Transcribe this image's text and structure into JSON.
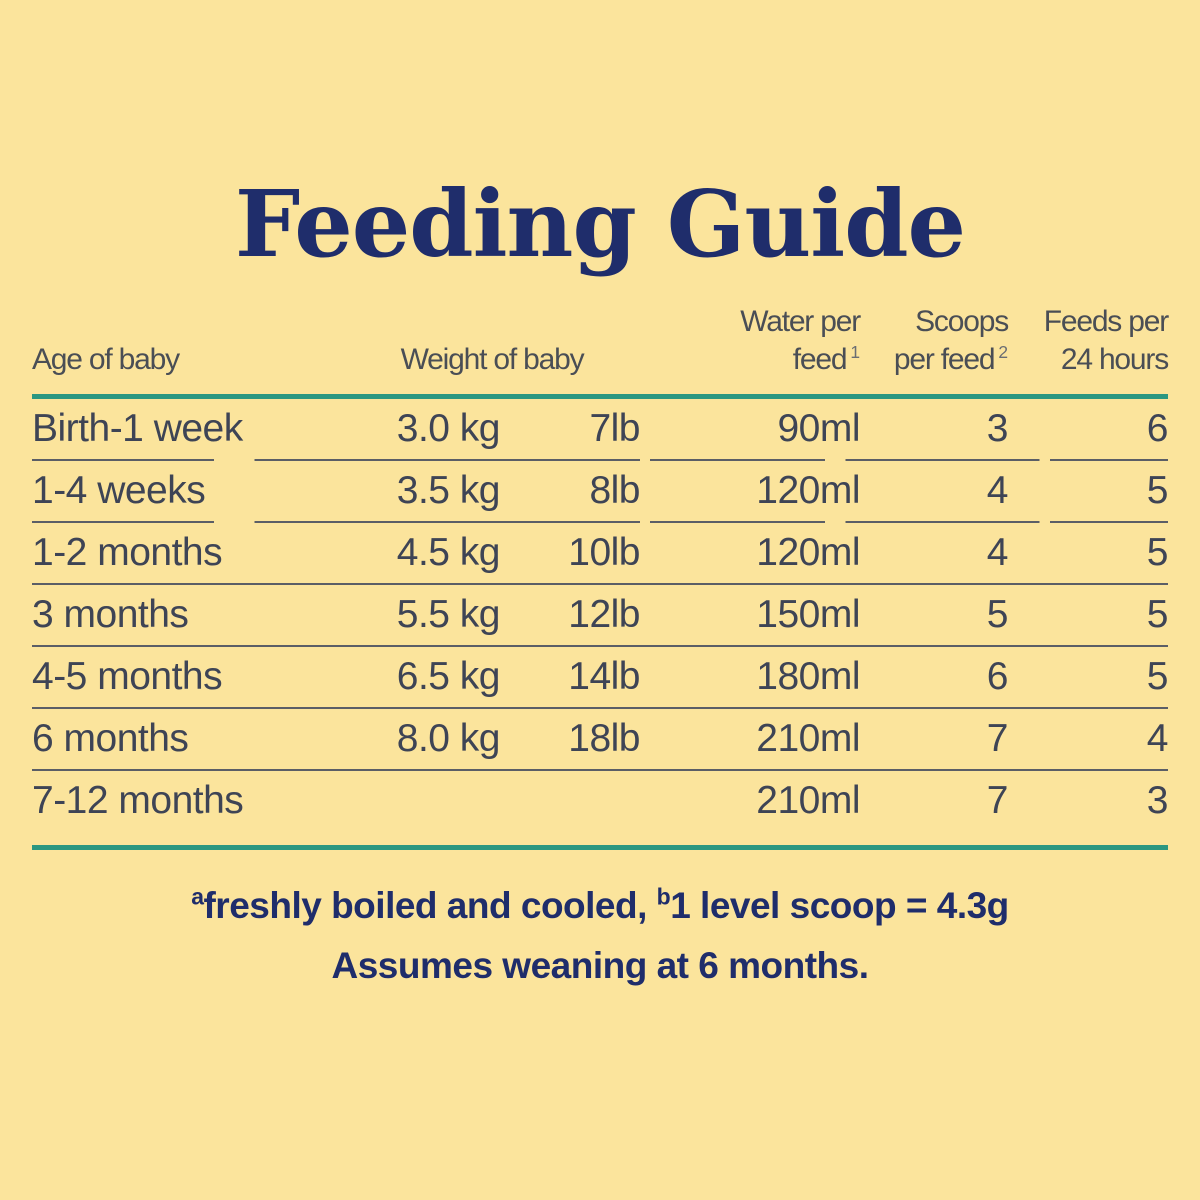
{
  "title": "Feeding Guide",
  "table": {
    "headers": {
      "age": "Age of baby",
      "weight": "Weight of baby",
      "water_line1": "Water per",
      "water_line2": "feed",
      "water_sup": "1",
      "scoops_line1": "Scoops",
      "scoops_line2": "per feed",
      "scoops_sup": "2",
      "feeds_line1": "Feeds per",
      "feeds_line2": "24 hours"
    },
    "rows": [
      {
        "age": "Birth-1 week",
        "kg": "3.0 kg",
        "lb": "7lb",
        "water": "90ml",
        "scoops": "3",
        "feeds": "6"
      },
      {
        "age": "1-4 weeks",
        "kg": "3.5 kg",
        "lb": "8lb",
        "water": "120ml",
        "scoops": "4",
        "feeds": "5"
      },
      {
        "age": "1-2 months",
        "kg": "4.5 kg",
        "lb": "10lb",
        "water": "120ml",
        "scoops": "4",
        "feeds": "5"
      },
      {
        "age": "3 months",
        "kg": "5.5 kg",
        "lb": "12lb",
        "water": "150ml",
        "scoops": "5",
        "feeds": "5"
      },
      {
        "age": "4-5 months",
        "kg": "6.5 kg",
        "lb": "14lb",
        "water": "180ml",
        "scoops": "6",
        "feeds": "5"
      },
      {
        "age": "6 months",
        "kg": "8.0 kg",
        "lb": "18lb",
        "water": "210ml",
        "scoops": "7",
        "feeds": "4"
      },
      {
        "age": "7-12 months",
        "kg": "",
        "lb": "",
        "water": "210ml",
        "scoops": "7",
        "feeds": "3"
      }
    ]
  },
  "footnotes": {
    "sup_a": "a",
    "note_a": "freshly boiled and cooled, ",
    "sup_b": "b",
    "note_b": "1 level scoop = 4.3g",
    "line2": "Assumes weaning at 6 months."
  },
  "colors": {
    "background": "#FBE49C",
    "title_navy": "#1F2D6B",
    "body_text": "#3E4455",
    "header_text": "#4A4E55",
    "accent_teal": "#2B9781",
    "separator_gray": "#5B5E66"
  }
}
